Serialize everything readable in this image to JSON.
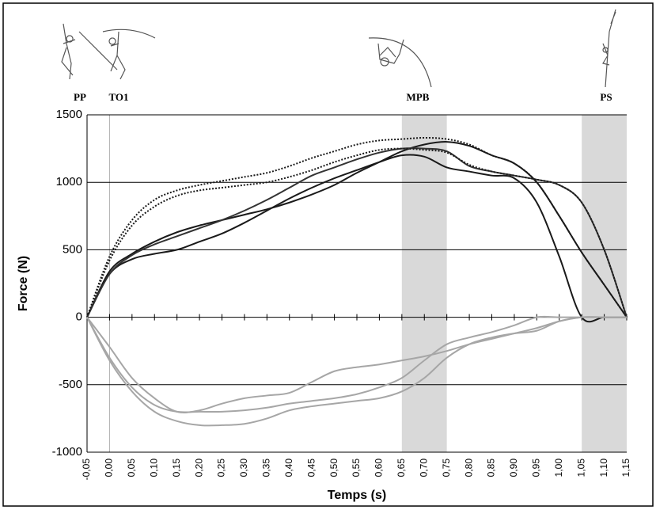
{
  "chart_data": {
    "type": "line",
    "x_label": "Temps (s)",
    "y_label": "Force (N)",
    "annotations": [
      "PP",
      "TO1",
      "MPB",
      "PS"
    ],
    "x": [
      -0.05,
      0,
      0.05,
      0.1,
      0.15,
      0.2,
      0.25,
      0.3,
      0.35,
      0.4,
      0.45,
      0.5,
      0.55,
      0.6,
      0.65,
      0.7,
      0.75,
      0.8,
      0.85,
      0.9,
      0.95,
      1,
      1.05,
      1.1,
      1.15
    ],
    "xlim": [
      -0.05,
      1.15
    ],
    "xticks": [
      {
        "value": -0.05,
        "label": "-0,05"
      },
      {
        "value": 0,
        "label": "0,00"
      },
      {
        "value": 0.05,
        "label": "0,05"
      },
      {
        "value": 0.1,
        "label": "0,10"
      },
      {
        "value": 0.15,
        "label": "0,15"
      },
      {
        "value": 0.2,
        "label": "0,20"
      },
      {
        "value": 0.25,
        "label": "0,25"
      },
      {
        "value": 0.3,
        "label": "0,30"
      },
      {
        "value": 0.35,
        "label": "0,35"
      },
      {
        "value": 0.4,
        "label": "0,40"
      },
      {
        "value": 0.45,
        "label": "0,45"
      },
      {
        "value": 0.5,
        "label": "0,50"
      },
      {
        "value": 0.55,
        "label": "0,55"
      },
      {
        "value": 0.6,
        "label": "0,60"
      },
      {
        "value": 0.65,
        "label": "0,65"
      },
      {
        "value": 0.7,
        "label": "0,70"
      },
      {
        "value": 0.75,
        "label": "0,75"
      },
      {
        "value": 0.8,
        "label": "0,80"
      },
      {
        "value": 0.85,
        "label": "0,85"
      },
      {
        "value": 0.9,
        "label": "0,90"
      },
      {
        "value": 0.95,
        "label": "0,95"
      },
      {
        "value": 1,
        "label": "1,00"
      },
      {
        "value": 1.05,
        "label": "1,05"
      },
      {
        "value": 1.1,
        "label": "1,10"
      },
      {
        "value": 1.15,
        "label": "1,15"
      }
    ],
    "ylim": [
      -1000,
      1500
    ],
    "yticks": [
      1500,
      1000,
      500,
      0,
      -500,
      -1000
    ],
    "grid": true,
    "shaded": [
      [
        0.65,
        0.75
      ],
      [
        1.05,
        1.15
      ]
    ],
    "shade_color": "#d9d9d9",
    "vlines": [
      0
    ],
    "series": [
      {
        "color": "#1a1a1a",
        "dash": false,
        "values": [
          0,
          320,
          430,
          470,
          500,
          560,
          620,
          700,
          790,
          880,
          960,
          1030,
          1090,
          1150,
          1200,
          1190,
          1110,
          1080,
          1050,
          1030,
          850,
          450,
          0,
          0,
          0
        ]
      },
      {
        "color": "#1a1a1a",
        "dash": false,
        "values": [
          0,
          340,
          470,
          560,
          630,
          680,
          720,
          760,
          800,
          850,
          910,
          980,
          1070,
          1150,
          1230,
          1280,
          1300,
          1270,
          1200,
          1140,
          1000,
          750,
          480,
          240,
          0
        ]
      },
      {
        "color": "#333333",
        "dash": false,
        "values": [
          0,
          320,
          460,
          540,
          600,
          660,
          720,
          790,
          870,
          960,
          1050,
          1110,
          1170,
          1220,
          1250,
          1250,
          1230,
          1120,
          1080,
          1050,
          1020,
          980,
          850,
          500,
          0
        ]
      },
      {
        "color": "#1a1a1a",
        "dash": true,
        "values": [
          0,
          450,
          720,
          870,
          940,
          980,
          1010,
          1040,
          1070,
          1120,
          1180,
          1230,
          1280,
          1310,
          1320,
          1330,
          1320,
          1280,
          1200,
          1140,
          1000,
          750,
          480,
          240,
          0
        ]
      },
      {
        "color": "#1a1a1a",
        "dash": true,
        "values": [
          0,
          420,
          680,
          820,
          900,
          940,
          960,
          980,
          1000,
          1040,
          1090,
          1150,
          1200,
          1240,
          1250,
          1240,
          1220,
          1130,
          1080,
          1050,
          1020,
          980,
          850,
          500,
          0
        ]
      },
      {
        "color": "#a6a6a6",
        "dash": false,
        "values": [
          0,
          -220,
          -450,
          -600,
          -700,
          -690,
          -640,
          -600,
          -580,
          -560,
          -480,
          -400,
          -370,
          -350,
          -320,
          -290,
          -250,
          -200,
          -160,
          -120,
          -80,
          -30,
          0,
          0,
          0
        ]
      },
      {
        "color": "#a6a6a6",
        "dash": false,
        "values": [
          0,
          -300,
          -520,
          -650,
          -700,
          -700,
          -700,
          -690,
          -670,
          -640,
          -620,
          -600,
          -570,
          -520,
          -450,
          -320,
          -200,
          -150,
          -110,
          -60,
          0,
          0,
          0,
          0,
          0
        ]
      },
      {
        "color": "#a6a6a6",
        "dash": false,
        "values": [
          0,
          -320,
          -550,
          -700,
          -770,
          -800,
          -800,
          -790,
          -750,
          -690,
          -660,
          -640,
          -620,
          -600,
          -550,
          -450,
          -300,
          -200,
          -150,
          -120,
          -100,
          -30,
          0,
          0,
          0
        ]
      }
    ]
  }
}
